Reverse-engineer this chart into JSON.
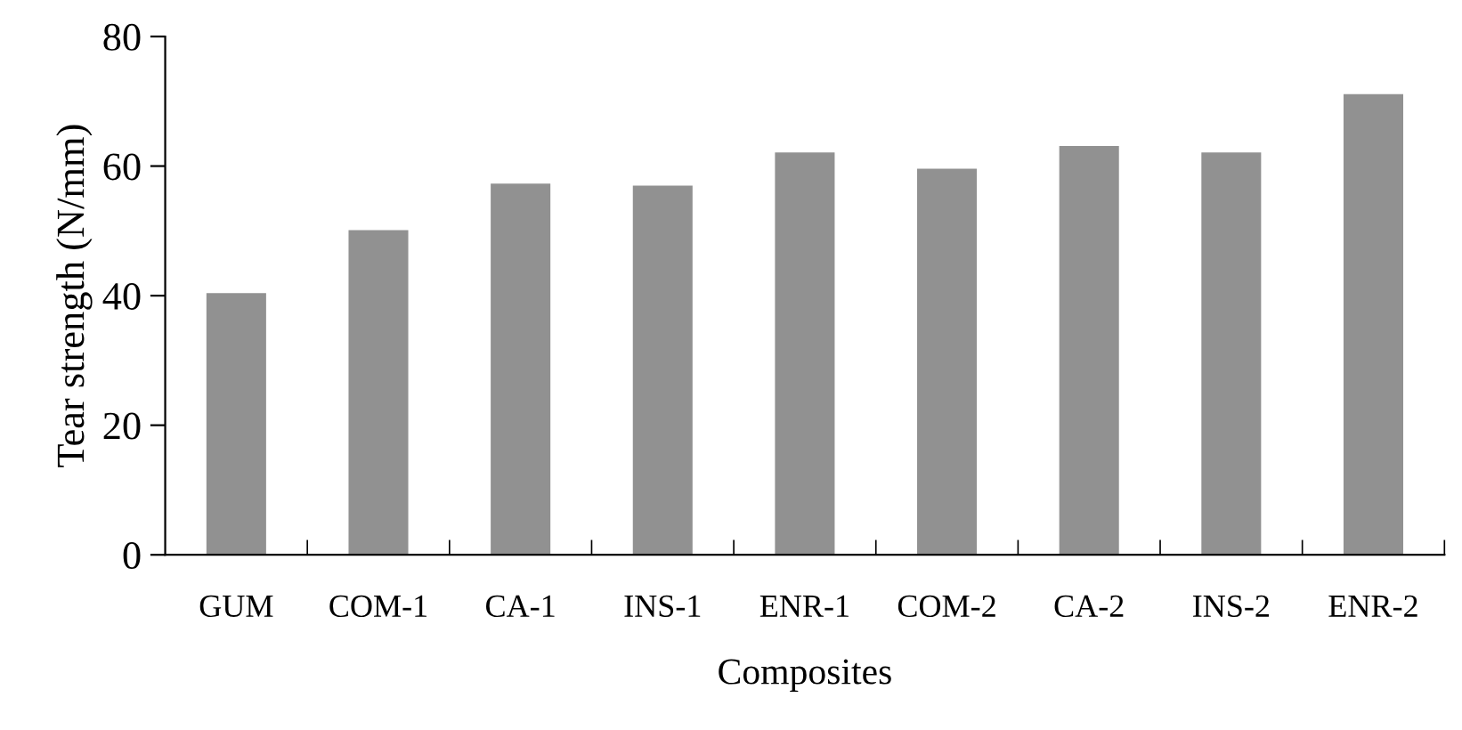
{
  "chart_data": {
    "type": "bar",
    "xlabel": "Composites",
    "ylabel": "Tear strength (N/mm)",
    "categories": [
      "GUM",
      "COM-1",
      "CA-1",
      "INS-1",
      "ENR-1",
      "COM-2",
      "CA-2",
      "INS-2",
      "ENR-2"
    ],
    "values": [
      40.4,
      50.1,
      57.3,
      57.0,
      62.1,
      59.6,
      63.1,
      62.1,
      71.1
    ],
    "color": "#919191",
    "ylim": [
      0,
      80
    ],
    "yticks": [
      0,
      20,
      40,
      60,
      80
    ],
    "grid": false,
    "legend": false
  }
}
